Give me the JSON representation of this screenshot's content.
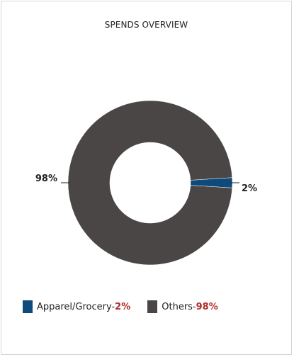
{
  "title": "SPENDS OVERVIEW",
  "chart_data": {
    "type": "pie",
    "donut": true,
    "categories": [
      "Apparel/Grocery",
      "Others"
    ],
    "values": [
      2,
      98
    ],
    "colors": [
      "#0e4a7b",
      "#4a4646"
    ],
    "data_labels": [
      "2%",
      "98%"
    ],
    "legend": "bottom-left"
  },
  "legend": [
    {
      "name": "Apparel/Grocery",
      "separator": "-",
      "pct": "2%",
      "color": "#0e4a7b"
    },
    {
      "name": "Others",
      "separator": "-",
      "pct": "98%",
      "color": "#4a4646"
    }
  ]
}
